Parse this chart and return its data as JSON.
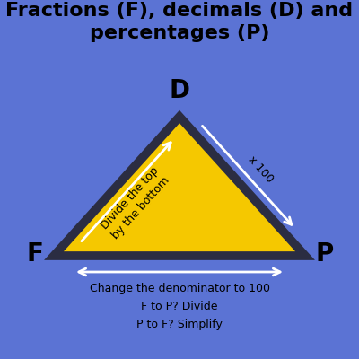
{
  "title": "Fractions (F), decimals (D) and\npercentages (P)",
  "background_color": "#5b73d4",
  "triangle_fill": "#f5c800",
  "triangle_edge": "#2b2d42",
  "triangle_edge_width": 7,
  "label_D": "D",
  "label_F": "F",
  "label_P": "P",
  "label_fontsize": 20,
  "label_fontweight": "bold",
  "arrow_color": "white",
  "arrow_text_left": "Divide the top\nby the bottom",
  "arrow_text_right": "x 100",
  "arrow_text_bottom": "Change the denominator to 100\nF to P? Divide\nP to F? Simplify",
  "title_fontsize": 16,
  "annot_fontsize": 9
}
